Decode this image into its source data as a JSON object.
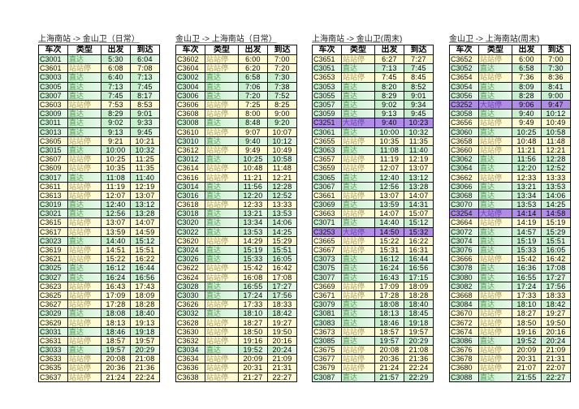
{
  "headers": [
    "车次",
    "类型",
    "出发",
    "到达"
  ],
  "colors": {
    "direct": "#c6efce",
    "local": "#ffffcc",
    "express": "#b08ce8"
  },
  "tables": [
    {
      "title": "上海南站 -> 金山卫（日常）",
      "rows": [
        [
          "C3001",
          "直达",
          "5:30",
          "6:04"
        ],
        [
          "C3601",
          "站站停",
          "6:08",
          "7:08"
        ],
        [
          "C3003",
          "直达",
          "6:40",
          "7:13"
        ],
        [
          "C3005",
          "直达",
          "7:13",
          "7:45"
        ],
        [
          "C3007",
          "直达",
          "7:45",
          "8:17"
        ],
        [
          "C3603",
          "站站停",
          "7:53",
          "8:53"
        ],
        [
          "C3009",
          "直达",
          "8:29",
          "9:01"
        ],
        [
          "C3011",
          "直达",
          "9:02",
          "9:33"
        ],
        [
          "C3013",
          "直达",
          "9:13",
          "9:45"
        ],
        [
          "C3605",
          "站站停",
          "9:21",
          "10:21"
        ],
        [
          "C3015",
          "直达",
          "10:00",
          "10:32"
        ],
        [
          "C3607",
          "站站停",
          "10:25",
          "11:25"
        ],
        [
          "C3609",
          "站站停",
          "10:35",
          "11:35"
        ],
        [
          "C3017",
          "直达",
          "11:08",
          "11:40"
        ],
        [
          "C3611",
          "站站停",
          "11:19",
          "12:19"
        ],
        [
          "C3613",
          "站站停",
          "12:07",
          "13:07"
        ],
        [
          "C3019",
          "直达",
          "12:40",
          "13:12"
        ],
        [
          "C3021",
          "直达",
          "12:56",
          "13:28"
        ],
        [
          "C3615",
          "站站停",
          "13:07",
          "14:07"
        ],
        [
          "C3617",
          "站站停",
          "13:59",
          "14:59"
        ],
        [
          "C3023",
          "直达",
          "14:40",
          "15:12"
        ],
        [
          "C3619",
          "站站停",
          "14:51",
          "15:51"
        ],
        [
          "C3621",
          "站站停",
          "15:22",
          "16:22"
        ],
        [
          "C3025",
          "直达",
          "16:12",
          "16:44"
        ],
        [
          "C3027",
          "直达",
          "16:24",
          "16:56"
        ],
        [
          "C3623",
          "站站停",
          "16:43",
          "17:43"
        ],
        [
          "C3625",
          "站站停",
          "17:09",
          "18:09"
        ],
        [
          "C3627",
          "站站停",
          "17:28",
          "18:28"
        ],
        [
          "C3029",
          "直达",
          "18:08",
          "18:40"
        ],
        [
          "C3629",
          "站站停",
          "18:13",
          "19:13"
        ],
        [
          "C3031",
          "直达",
          "18:46",
          "19:18"
        ],
        [
          "C3631",
          "站站停",
          "18:57",
          "19:57"
        ],
        [
          "C3033",
          "直达",
          "19:57",
          "20:29"
        ],
        [
          "C3633",
          "站站停",
          "20:08",
          "21:08"
        ],
        [
          "C3635",
          "站站停",
          "20:36",
          "21:36"
        ],
        [
          "C3637",
          "站站停",
          "21:24",
          "22:24"
        ]
      ]
    },
    {
      "title": "金山卫 -> 上海南站（日常）",
      "rows": [
        [
          "C3602",
          "站站停",
          "6:00",
          "7:00"
        ],
        [
          "C3604",
          "站站停",
          "6:20",
          "7:20"
        ],
        [
          "C3002",
          "直达",
          "6:58",
          "7:30"
        ],
        [
          "C3004",
          "直达",
          "7:06",
          "7:38"
        ],
        [
          "C3006",
          "直达",
          "7:20",
          "7:52"
        ],
        [
          "C3606",
          "站站停",
          "7:25",
          "8:25"
        ],
        [
          "C3608",
          "站站停",
          "8:00",
          "9:00"
        ],
        [
          "C3008",
          "直达",
          "8:48",
          "9:20"
        ],
        [
          "C3610",
          "站站停",
          "9:07",
          "10:07"
        ],
        [
          "C3010",
          "直达",
          "9:40",
          "10:12"
        ],
        [
          "C3612",
          "站站停",
          "9:49",
          "10:49"
        ],
        [
          "C3012",
          "直达",
          "10:25",
          "10:58"
        ],
        [
          "C3614",
          "站站停",
          "10:48",
          "11:48"
        ],
        [
          "C3616",
          "站站停",
          "11:21",
          "12:21"
        ],
        [
          "C3014",
          "直达",
          "11:56",
          "12:28"
        ],
        [
          "C3016",
          "直达",
          "12:20",
          "12:52"
        ],
        [
          "C3618",
          "站站停",
          "12:33",
          "13:33"
        ],
        [
          "C3018",
          "直达",
          "13:21",
          "13:53"
        ],
        [
          "C3020",
          "直达",
          "13:34",
          "14:06"
        ],
        [
          "C3022",
          "直达",
          "13:53",
          "14:25"
        ],
        [
          "C3620",
          "站站停",
          "14:29",
          "15:29"
        ],
        [
          "C3024",
          "直达",
          "15:19",
          "15:51"
        ],
        [
          "C3026",
          "直达",
          "15:33",
          "16:05"
        ],
        [
          "C3622",
          "站站停",
          "15:42",
          "16:42"
        ],
        [
          "C3624",
          "站站停",
          "16:08",
          "17:08"
        ],
        [
          "C3028",
          "直达",
          "16:55",
          "17:27"
        ],
        [
          "C3030",
          "直达",
          "17:24",
          "17:56"
        ],
        [
          "C3626",
          "站站停",
          "17:33",
          "18:33"
        ],
        [
          "C3032",
          "直达",
          "18:10",
          "18:42"
        ],
        [
          "C3628",
          "站站停",
          "18:27",
          "19:27"
        ],
        [
          "C3630",
          "站站停",
          "18:50",
          "19:50"
        ],
        [
          "C3632",
          "站站停",
          "19:16",
          "20:16"
        ],
        [
          "C3034",
          "直达",
          "19:52",
          "20:24"
        ],
        [
          "C3634",
          "站站停",
          "20:09",
          "21:09"
        ],
        [
          "C3636",
          "站站停",
          "20:31",
          "21:31"
        ],
        [
          "C3638",
          "站站停",
          "21:27",
          "22:27"
        ]
      ]
    },
    {
      "title": "上海南站 -> 金山卫(周末)",
      "rows": [
        [
          "C3651",
          "站站停",
          "6:27",
          "7:27"
        ],
        [
          "C3051",
          "直达",
          "7:13",
          "7:45"
        ],
        [
          "C3653",
          "站站停",
          "7:45",
          "8:45"
        ],
        [
          "C3053",
          "直达",
          "8:20",
          "8:52"
        ],
        [
          "C3055",
          "直达",
          "8:29",
          "9:01"
        ],
        [
          "C3057",
          "直达",
          "9:02",
          "9:34"
        ],
        [
          "C3059",
          "直达",
          "9:13",
          "9:45"
        ],
        [
          "C3251",
          "大站停",
          "9:40",
          "10:23"
        ],
        [
          "C3061",
          "直达",
          "10:00",
          "10:32"
        ],
        [
          "C3655",
          "站站停",
          "10:35",
          "11:35"
        ],
        [
          "C3063",
          "直达",
          "11:08",
          "11:40"
        ],
        [
          "C3657",
          "站站停",
          "11:19",
          "12:19"
        ],
        [
          "C3659",
          "站站停",
          "12:07",
          "13:07"
        ],
        [
          "C3065",
          "直达",
          "12:40",
          "13:12"
        ],
        [
          "C3067",
          "直达",
          "12:56",
          "13:28"
        ],
        [
          "C3661",
          "站站停",
          "13:07",
          "14:07"
        ],
        [
          "C3069",
          "直达",
          "13:59",
          "14:31"
        ],
        [
          "C3663",
          "站站停",
          "14:07",
          "15:07"
        ],
        [
          "C3071",
          "直达",
          "14:40",
          "15:12"
        ],
        [
          "C3253",
          "大站停",
          "14:50",
          "15:32"
        ],
        [
          "C3665",
          "站站停",
          "15:22",
          "16:22"
        ],
        [
          "C3667",
          "站站停",
          "15:31",
          "16:31"
        ],
        [
          "C3073",
          "直达",
          "16:12",
          "16:44"
        ],
        [
          "C3075",
          "直达",
          "16:24",
          "16:56"
        ],
        [
          "C3077",
          "直达",
          "16:43",
          "17:15"
        ],
        [
          "C3669",
          "站站停",
          "17:09",
          "18:09"
        ],
        [
          "C3671",
          "站站停",
          "17:28",
          "18:28"
        ],
        [
          "C3079",
          "直达",
          "18:08",
          "18:40"
        ],
        [
          "C3081",
          "直达",
          "18:13",
          "18:45"
        ],
        [
          "C3083",
          "直达",
          "18:46",
          "19:18"
        ],
        [
          "C3673",
          "站站停",
          "18:57",
          "19:57"
        ],
        [
          "C3085",
          "直达",
          "19:57",
          "20:29"
        ],
        [
          "C3675",
          "站站停",
          "20:08",
          "21:08"
        ],
        [
          "C3677",
          "站站停",
          "20:36",
          "21:36"
        ],
        [
          "C3679",
          "站站停",
          "21:24",
          "22:24"
        ],
        [
          "C3087",
          "直达",
          "21:57",
          "22:29"
        ]
      ]
    },
    {
      "title": "金山卫 -> 上海南站(周末)",
      "rows": [
        [
          "C3652",
          "站站停",
          "6:00",
          "7:00"
        ],
        [
          "C3052",
          "直达",
          "6:58",
          "7:30"
        ],
        [
          "C3654",
          "站站停",
          "7:36",
          "8:36"
        ],
        [
          "C3054",
          "直达",
          "8:09",
          "8:41"
        ],
        [
          "C3056",
          "直达",
          "8:28",
          "9:00"
        ],
        [
          "C3252",
          "大站停",
          "9:06",
          "9:47"
        ],
        [
          "C3058",
          "直达",
          "9:40",
          "10:12"
        ],
        [
          "C3656",
          "站站停",
          "9:49",
          "10:49"
        ],
        [
          "C3060",
          "直达",
          "10:25",
          "10:58"
        ],
        [
          "C3658",
          "站站停",
          "10:48",
          "11:48"
        ],
        [
          "C3660",
          "站站停",
          "11:21",
          "12:21"
        ],
        [
          "C3062",
          "直达",
          "11:56",
          "12:28"
        ],
        [
          "C3064",
          "直达",
          "12:20",
          "12:52"
        ],
        [
          "C3662",
          "站站停",
          "12:33",
          "13:33"
        ],
        [
          "C3066",
          "直达",
          "13:21",
          "13:53"
        ],
        [
          "C3068",
          "直达",
          "13:34",
          "14:06"
        ],
        [
          "C3070",
          "直达",
          "13:53",
          "14:25"
        ],
        [
          "C3254",
          "大站停",
          "14:14",
          "14:58"
        ],
        [
          "C3664",
          "站站停",
          "14:19",
          "15:19"
        ],
        [
          "C3072",
          "直达",
          "14:57",
          "15:29"
        ],
        [
          "C3074",
          "直达",
          "15:19",
          "15:51"
        ],
        [
          "C3076",
          "直达",
          "15:33",
          "16:05"
        ],
        [
          "C3666",
          "站站停",
          "15:42",
          "16:42"
        ],
        [
          "C3078",
          "直达",
          "16:36",
          "17:08"
        ],
        [
          "C3080",
          "直达",
          "16:55",
          "17:27"
        ],
        [
          "C3082",
          "直达",
          "17:24",
          "17:56"
        ],
        [
          "C3668",
          "站站停",
          "17:33",
          "18:33"
        ],
        [
          "C3084",
          "直达",
          "18:10",
          "18:42"
        ],
        [
          "C3670",
          "站站停",
          "18:27",
          "19:27"
        ],
        [
          "C3672",
          "站站停",
          "18:50",
          "19:50"
        ],
        [
          "C3674",
          "站站停",
          "19:16",
          "20:16"
        ],
        [
          "C3086",
          "直达",
          "19:52",
          "20:24"
        ],
        [
          "C3676",
          "站站停",
          "20:09",
          "21:09"
        ],
        [
          "C3678",
          "站站停",
          "20:31",
          "21:31"
        ],
        [
          "C3680",
          "站站停",
          "21:07",
          "22:07"
        ],
        [
          "C3088",
          "直达",
          "21:55",
          "22:27"
        ]
      ]
    }
  ]
}
